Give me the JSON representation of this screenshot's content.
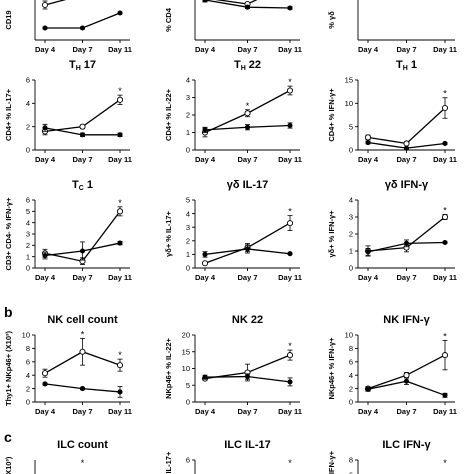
{
  "section_labels": [
    "b",
    "c"
  ],
  "chart_data": [
    {
      "id": "a-cd19",
      "type": "line",
      "title": "",
      "ylabel": "CD19",
      "categories": [
        "Day 4",
        "Day 7",
        "Day 11"
      ],
      "ylim": null,
      "yticks": [],
      "series": [
        {
          "marker": "open",
          "values": [
            3.5,
            4.5,
            6.0
          ],
          "err": [
            0.4,
            0.3,
            0.3
          ]
        },
        {
          "marker": "filled",
          "values": [
            1.2,
            1.2,
            2.7
          ],
          "err": [
            0.1,
            0.1,
            0.1
          ]
        }
      ],
      "stars": []
    },
    {
      "id": "a-cd4",
      "type": "line",
      "title": "",
      "ylabel": "% CD4",
      "categories": [
        "Day 4",
        "Day 7",
        "Day 11"
      ],
      "ylim": null,
      "yticks": [],
      "series": [
        {
          "marker": "open",
          "values": [
            10.5,
            9.0,
            14.0
          ],
          "err": [
            0.8,
            0.4,
            0.5
          ]
        },
        {
          "marker": "filled",
          "values": [
            10.0,
            8.2,
            8.0
          ],
          "err": [
            0.5,
            0.3,
            0.3
          ]
        }
      ],
      "stars": []
    },
    {
      "id": "a-gd",
      "type": "line",
      "title": "",
      "ylabel": "% γδ",
      "categories": [
        "Day 4",
        "Day 7",
        "Day 11"
      ],
      "ylim": null,
      "yticks": [],
      "series": [],
      "stars": []
    },
    {
      "id": "th17",
      "type": "line",
      "title": "T",
      "title_sub": "H",
      "title_rest": " 17",
      "ylabel": "CD4+ % IL-17+",
      "categories": [
        "Day 4",
        "Day 7",
        "Day 11"
      ],
      "ylim": [
        0,
        6
      ],
      "yticks": [
        "0",
        "2",
        "4",
        "6"
      ],
      "series": [
        {
          "marker": "open",
          "values": [
            1.6,
            2.0,
            4.3
          ],
          "err": [
            0.3,
            0.15,
            0.4
          ]
        },
        {
          "marker": "filled",
          "values": [
            1.9,
            1.3,
            1.3
          ],
          "err": [
            0.3,
            0.15,
            0.15
          ]
        }
      ],
      "stars": [
        {
          "index": 2,
          "text": "*"
        }
      ]
    },
    {
      "id": "th22",
      "type": "line",
      "title": "T",
      "title_sub": "H",
      "title_rest": " 22",
      "ylabel": "CD4+ % IL-22+",
      "categories": [
        "Day 4",
        "Day 7",
        "Day 11"
      ],
      "ylim": [
        0,
        4
      ],
      "yticks": [
        "0",
        "1",
        "2",
        "3",
        "4"
      ],
      "series": [
        {
          "marker": "open",
          "values": [
            1.0,
            2.1,
            3.4
          ],
          "err": [
            0.25,
            0.2,
            0.25
          ]
        },
        {
          "marker": "filled",
          "values": [
            1.15,
            1.3,
            1.4
          ],
          "err": [
            0.15,
            0.15,
            0.15
          ]
        }
      ],
      "stars": [
        {
          "index": 1,
          "text": "*"
        },
        {
          "index": 2,
          "text": "*"
        }
      ]
    },
    {
      "id": "th1",
      "type": "line",
      "title": "T",
      "title_sub": "H",
      "title_rest": " 1",
      "ylabel": "CD4+ % IFN-γ+",
      "categories": [
        "Day 4",
        "Day 7",
        "Day 11"
      ],
      "ylim": [
        0,
        15
      ],
      "yticks": [
        "0",
        "5",
        "10",
        "15"
      ],
      "series": [
        {
          "marker": "open",
          "values": [
            2.7,
            1.4,
            9.0
          ],
          "err": [
            0.5,
            0.3,
            2.2
          ]
        },
        {
          "marker": "filled",
          "values": [
            1.6,
            0.4,
            1.4
          ],
          "err": [
            0.3,
            0.1,
            0.2
          ]
        }
      ],
      "stars": [
        {
          "index": 2,
          "text": "*"
        }
      ]
    },
    {
      "id": "tc1",
      "type": "line",
      "title": "T",
      "title_sub": "C",
      "title_rest": " 1",
      "ylabel": "CD3+ CD4- % IFN-γ+",
      "categories": [
        "Day 4",
        "Day 7",
        "Day 11"
      ],
      "ylim": [
        0,
        6
      ],
      "yticks": [
        "0",
        "1",
        "2",
        "3",
        "4",
        "5",
        "6"
      ],
      "series": [
        {
          "marker": "open",
          "values": [
            1.3,
            0.6,
            5.0
          ],
          "err": [
            0.35,
            0.3,
            0.4
          ]
        },
        {
          "marker": "filled",
          "values": [
            1.1,
            1.5,
            2.2
          ],
          "err": [
            0.3,
            0.8,
            0.15
          ]
        }
      ],
      "stars": [
        {
          "index": 2,
          "text": "*"
        }
      ]
    },
    {
      "id": "gd-il17",
      "type": "line",
      "title": "γδ IL-17",
      "ylabel": "γδ+ % IL-17+",
      "categories": [
        "Day 4",
        "Day 7",
        "Day 11"
      ],
      "ylim": [
        0,
        5
      ],
      "yticks": [
        "0",
        "1",
        "2",
        "3",
        "4",
        "5"
      ],
      "series": [
        {
          "marker": "open",
          "values": [
            0.35,
            1.5,
            3.3
          ],
          "err": [
            0.05,
            0.3,
            0.55
          ]
        },
        {
          "marker": "filled",
          "values": [
            1.0,
            1.4,
            1.05
          ],
          "err": [
            0.2,
            0.3,
            0.05
          ]
        }
      ],
      "stars": [
        {
          "index": 2,
          "text": "*"
        }
      ]
    },
    {
      "id": "gd-ifng",
      "type": "line",
      "title": "γδ IFN-γ",
      "ylabel": "γδ+ % IFN-γ+",
      "categories": [
        "Day 4",
        "Day 7",
        "Day 11"
      ],
      "ylim": [
        0,
        4
      ],
      "yticks": [
        "0",
        "1",
        "2",
        "3",
        "4"
      ],
      "series": [
        {
          "marker": "open",
          "values": [
            1.0,
            1.2,
            3.0
          ],
          "err": [
            0.3,
            0.25,
            0.15
          ]
        },
        {
          "marker": "filled",
          "values": [
            0.95,
            1.45,
            1.5
          ],
          "err": [
            0.2,
            0.2,
            0.05
          ]
        }
      ],
      "stars": [
        {
          "index": 2,
          "text": "*"
        }
      ]
    },
    {
      "id": "nk-count",
      "type": "line",
      "title": "NK cell count",
      "ylabel": "Thy1+ NKp46+ (X10³)",
      "categories": [
        "Day 4",
        "Day 7",
        "Day 11"
      ],
      "ylim": [
        0,
        10
      ],
      "yticks": [
        "0",
        "2",
        "4",
        "6",
        "8",
        "10"
      ],
      "series": [
        {
          "marker": "open",
          "values": [
            4.3,
            7.5,
            5.5
          ],
          "err": [
            0.6,
            2.0,
            0.9
          ]
        },
        {
          "marker": "filled",
          "values": [
            2.7,
            2.0,
            1.5
          ],
          "err": [
            0.15,
            0.15,
            0.8
          ]
        }
      ],
      "stars": [
        {
          "index": 1,
          "text": "*"
        },
        {
          "index": 2,
          "text": "*"
        }
      ]
    },
    {
      "id": "nk22",
      "type": "line",
      "title": "NK 22",
      "ylabel": "NKp46+ % IL-22+",
      "categories": [
        "Day 4",
        "Day 7",
        "Day 11"
      ],
      "ylim": [
        0,
        20
      ],
      "yticks": [
        "0",
        "5",
        "10",
        "15",
        "20"
      ],
      "series": [
        {
          "marker": "open",
          "values": [
            7.0,
            8.8,
            14.0
          ],
          "err": [
            0.5,
            2.5,
            1.5
          ]
        },
        {
          "marker": "filled",
          "values": [
            7.4,
            7.6,
            6.0
          ],
          "err": [
            0.6,
            0.8,
            1.2
          ]
        }
      ],
      "stars": [
        {
          "index": 2,
          "text": "*"
        }
      ]
    },
    {
      "id": "nk-ifng",
      "type": "line",
      "title": "NK IFN-γ",
      "ylabel": "NKp46+ % IFN-γ+",
      "categories": [
        "Day 4",
        "Day 7",
        "Day 11"
      ],
      "ylim": [
        0,
        10
      ],
      "yticks": [
        "0",
        "2",
        "4",
        "6",
        "8",
        "10"
      ],
      "series": [
        {
          "marker": "open",
          "values": [
            2.0,
            4.0,
            7.0
          ],
          "err": [
            0.3,
            0.4,
            2.2
          ]
        },
        {
          "marker": "filled",
          "values": [
            1.9,
            3.1,
            1.0
          ],
          "err": [
            0.3,
            0.5,
            0.3
          ]
        }
      ],
      "stars": [
        {
          "index": 2,
          "text": "*"
        }
      ]
    },
    {
      "id": "ilc-count",
      "type": "line",
      "title": "ILC count",
      "ylabel": "(X10³)",
      "categories": [
        "Day 4",
        "Day 7",
        "Day 11"
      ],
      "ylim": null,
      "yticks": [],
      "series": [],
      "stars": [
        {
          "index": 1,
          "text": "*"
        }
      ]
    },
    {
      "id": "ilc-il17",
      "type": "line",
      "title": "ILC IL-17",
      "ylabel": "% IL-17+",
      "categories": [
        "Day 4",
        "Day 7",
        "Day 11"
      ],
      "ylim": [
        0,
        6
      ],
      "yticks": [
        "6",
        "4"
      ],
      "series": [],
      "stars": [
        {
          "index": 2,
          "text": "*"
        }
      ]
    },
    {
      "id": "ilc-ifng",
      "type": "line",
      "title": "ILC IFN-γ",
      "ylabel": "% IFN-γ+",
      "categories": [
        "Day 4",
        "Day 7",
        "Day 11"
      ],
      "ylim": [
        0,
        8
      ],
      "yticks": [
        "8",
        "6"
      ],
      "series": [],
      "stars": [
        {
          "index": 2,
          "text": "*"
        }
      ]
    }
  ]
}
